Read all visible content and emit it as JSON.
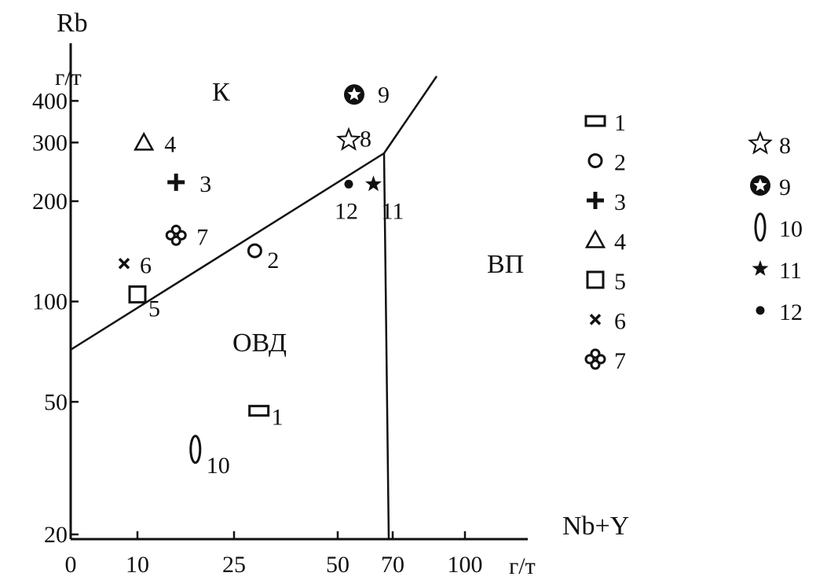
{
  "chart_data": {
    "type": "scatter",
    "title": "",
    "xlabel": "Nb+Y",
    "xunit": "г/т",
    "ylabel": "Rb",
    "yunit": "г/т",
    "x_tick_labels": [
      "0",
      "10",
      "25",
      "50",
      "70",
      "100"
    ],
    "y_tick_labels": [
      "20",
      "50",
      "100",
      "200",
      "300",
      "400"
    ],
    "yscale": "log",
    "ylim": [
      20,
      500
    ],
    "grid": false,
    "legend_position": "right",
    "regions": [
      {
        "id": "k",
        "label": "К"
      },
      {
        "id": "vp",
        "label": "ВП"
      },
      {
        "id": "ovd",
        "label": "ОВД"
      }
    ],
    "points": [
      {
        "id": "1",
        "label": "1",
        "symbol": "rect",
        "x": 31,
        "y": 47
      },
      {
        "id": "2",
        "label": "2",
        "symbol": "circle",
        "x": 30,
        "y": 142
      },
      {
        "id": "3",
        "label": "3",
        "symbol": "plus",
        "x": 16,
        "y": 228
      },
      {
        "id": "4",
        "label": "4",
        "symbol": "triangle",
        "x": 11,
        "y": 300
      },
      {
        "id": "5",
        "label": "5",
        "symbol": "square",
        "x": 10,
        "y": 105
      },
      {
        "id": "6",
        "label": "6",
        "symbol": "cross",
        "x": 8,
        "y": 130
      },
      {
        "id": "7",
        "label": "7",
        "symbol": "quatrefoil",
        "x": 16,
        "y": 158
      },
      {
        "id": "8",
        "label": "8",
        "symbol": "star-open",
        "x": 54,
        "y": 305
      },
      {
        "id": "9",
        "label": "9",
        "symbol": "star-circle",
        "x": 56,
        "y": 418
      },
      {
        "id": "10",
        "label": "10",
        "symbol": "ellipse",
        "x": 19,
        "y": 36
      },
      {
        "id": "11",
        "label": "11",
        "symbol": "star-filled",
        "x": 63,
        "y": 225
      },
      {
        "id": "12",
        "label": "12",
        "symbol": "dot",
        "x": 54,
        "y": 225
      }
    ],
    "legend": [
      {
        "symbol": "rect",
        "label": "1"
      },
      {
        "symbol": "circle",
        "label": "2"
      },
      {
        "symbol": "plus",
        "label": "3"
      },
      {
        "symbol": "triangle",
        "label": "4"
      },
      {
        "symbol": "square",
        "label": "5"
      },
      {
        "symbol": "cross",
        "label": "6"
      },
      {
        "symbol": "quatrefoil",
        "label": "7"
      },
      {
        "symbol": "star-open",
        "label": "8"
      },
      {
        "symbol": "star-circle",
        "label": "9"
      },
      {
        "symbol": "ellipse",
        "label": "10"
      },
      {
        "symbol": "star-filled",
        "label": "11"
      },
      {
        "symbol": "dot",
        "label": "12"
      }
    ],
    "colors": {
      "ink": "#111111",
      "background": "#ffffff"
    }
  }
}
